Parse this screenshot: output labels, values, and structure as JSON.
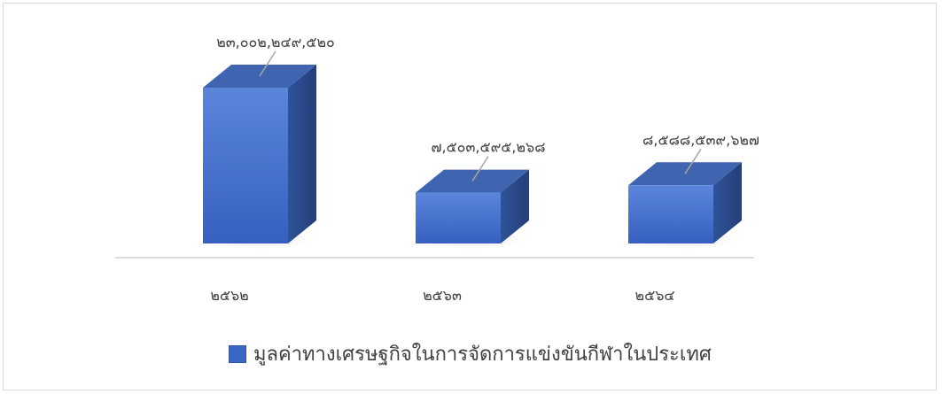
{
  "chart_data": {
    "type": "bar",
    "style": "3d-column",
    "categories": [
      "๒๕๖๒",
      "๒๕๖๓",
      "๒๕๖๔"
    ],
    "series": [
      {
        "name": "มูลค่าทางเศรษฐกิจในการจัดการแข่งขันกีฬาในประเทศ",
        "values": [
          23002249520,
          7503595268,
          8588539627
        ],
        "data_labels": [
          "๒๓,๐๐๒,๒๔๙,๕๒๐",
          "๗,๕๐๓,๕๙๕,๒๖๘",
          "๘,๕๘๘,๕๓๙,๖๒๗"
        ]
      }
    ],
    "title": "",
    "xlabel": "",
    "ylabel": "",
    "ylim": [
      0,
      23002249520
    ],
    "grid": false,
    "legend_position": "bottom"
  },
  "colors": {
    "front_top": "#5b86da",
    "front_bottom": "#3560c0",
    "side": "#2a4a8e",
    "top": "#3f64b0",
    "legend": "#3a66c4"
  }
}
